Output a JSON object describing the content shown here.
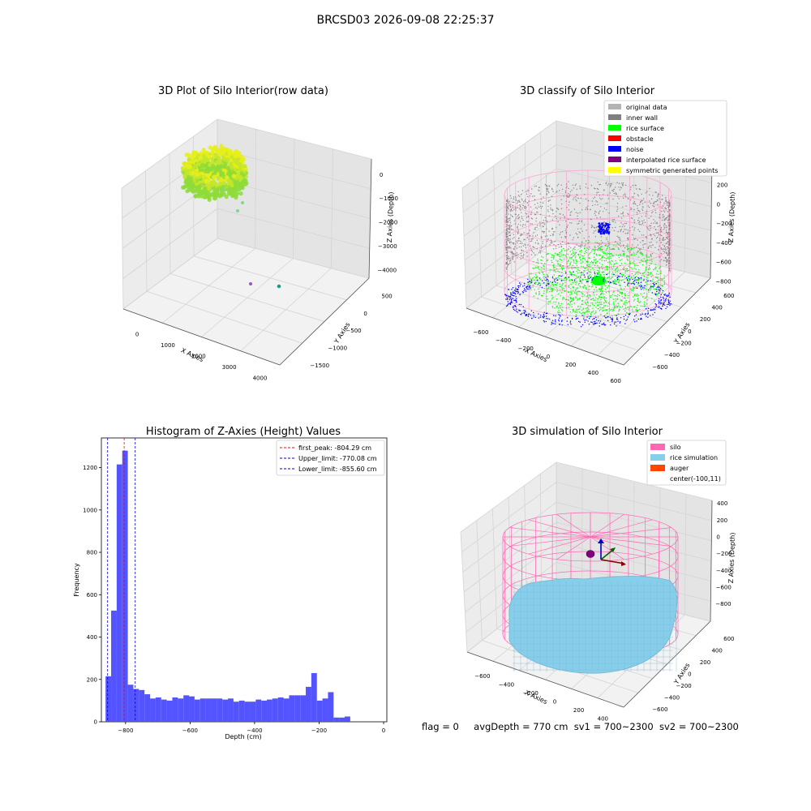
{
  "suptitle": "BRCSD03 2026-09-08 22:25:37",
  "status": {
    "flag": "flag = 0",
    "avg_depth": "avgDepth = 770 cm",
    "sv1": "sv1 = 700~2300",
    "sv2": "sv2 = 700~2300"
  },
  "colors": {
    "hist_bar": "#4b4bff",
    "first_peak_line": "#ff0000",
    "limit_line": "#0000cc",
    "silo_wire": "#ff69b4",
    "rice_surface": "#87ceeb",
    "rice_points": "#00ff00",
    "noise_points": "#0000ff",
    "wall_points": "#888888",
    "auger": "#ff4500"
  },
  "chart_data": [
    {
      "type": "scatter",
      "projection": "3d",
      "title": "3D Plot of Silo Interior(row data)",
      "xlabel": "X Axies",
      "ylabel": "Y Axies",
      "zlabel": "Z Axies (Depth)",
      "x_ticks": [
        "0",
        "1000",
        "2000",
        "3000",
        "4000"
      ],
      "y_ticks": [
        "500",
        "0",
        "−500",
        "−1000",
        "−1500"
      ],
      "z_ticks": [
        "0",
        "−1000",
        "−2000",
        "−3000",
        "−4000"
      ],
      "grid": true
    },
    {
      "type": "scatter",
      "projection": "3d",
      "title": "3D classify of Silo Interior",
      "xlabel": "X Axies",
      "ylabel": "Y Axies",
      "zlabel": "Z Axies (Depth)",
      "x_ticks": [
        "−600",
        "−400",
        "−200",
        "0",
        "200",
        "400",
        "600"
      ],
      "y_ticks": [
        "600",
        "400",
        "200",
        "0",
        "−200",
        "−400",
        "−600"
      ],
      "z_ticks": [
        "200",
        "0",
        "−200",
        "−400",
        "−600",
        "−800"
      ],
      "legend_position": "top-right",
      "legend": [
        {
          "label": "original data",
          "color": "#b3b3b3"
        },
        {
          "label": "inner wall",
          "color": "#808080"
        },
        {
          "label": "rice surface",
          "color": "#00ff00"
        },
        {
          "label": "obstacle",
          "color": "#ff0000"
        },
        {
          "label": "noise",
          "color": "#0000ff"
        },
        {
          "label": "interpolated rice surface",
          "color": "#800080"
        },
        {
          "label": "symmetric generated points",
          "color": "#ffff00"
        }
      ],
      "grid": true
    },
    {
      "type": "bar",
      "title": "Histogram of Z-Axies (Height) Values",
      "xlabel": "Depth (cm)",
      "ylabel": "Frequency",
      "xlim": [
        -875,
        10
      ],
      "ylim": [
        0,
        1340
      ],
      "x_ticks": [
        -800,
        -600,
        -400,
        -200,
        0
      ],
      "x_tick_labels": [
        "−800",
        "−600",
        "−400",
        "−200",
        "0"
      ],
      "y_ticks": [
        0,
        200,
        400,
        600,
        800,
        1000,
        1200
      ],
      "bin_start": -862,
      "bin_width": 17.24,
      "values": [
        215,
        525,
        1215,
        1280,
        175,
        155,
        150,
        130,
        110,
        115,
        105,
        100,
        115,
        110,
        125,
        120,
        105,
        110,
        110,
        110,
        110,
        105,
        110,
        95,
        100,
        95,
        95,
        105,
        100,
        105,
        110,
        115,
        110,
        125,
        125,
        125,
        165,
        230,
        100,
        110,
        140,
        20,
        20,
        25
      ],
      "vlines": [
        {
          "label": "first_peak: -804.29 cm",
          "x": -804.29,
          "color": "#ff0000"
        },
        {
          "label": "Upper_limit: -770.08 cm",
          "x": -770.08,
          "color": "#0000cc"
        },
        {
          "label": "Lower_limit: -855.60 cm",
          "x": -855.6,
          "color": "#0000cc"
        }
      ],
      "legend_position": "top-right",
      "grid": false
    },
    {
      "type": "scatter",
      "projection": "3d",
      "title": "3D simulation of Silo Interior",
      "xlabel": "X Axies",
      "ylabel": "Y Axies",
      "zlabel": "Z Axies (Depth)",
      "x_ticks": [
        "−600",
        "−400",
        "−200",
        "0",
        "200",
        "400"
      ],
      "y_ticks": [
        "600",
        "400",
        "200",
        "0",
        "−200",
        "−400",
        "−600"
      ],
      "z_ticks": [
        "400",
        "200",
        "0",
        "−200",
        "−400",
        "−600",
        "−800"
      ],
      "legend_position": "top-right",
      "legend": [
        {
          "label": "silo",
          "color": "#ff69b4"
        },
        {
          "label": "rice simulation",
          "color": "#87ceeb"
        },
        {
          "label": "auger",
          "color": "#ff4500"
        },
        {
          "label": "center(-100,11)",
          "color": "none"
        }
      ],
      "grid": true
    }
  ]
}
